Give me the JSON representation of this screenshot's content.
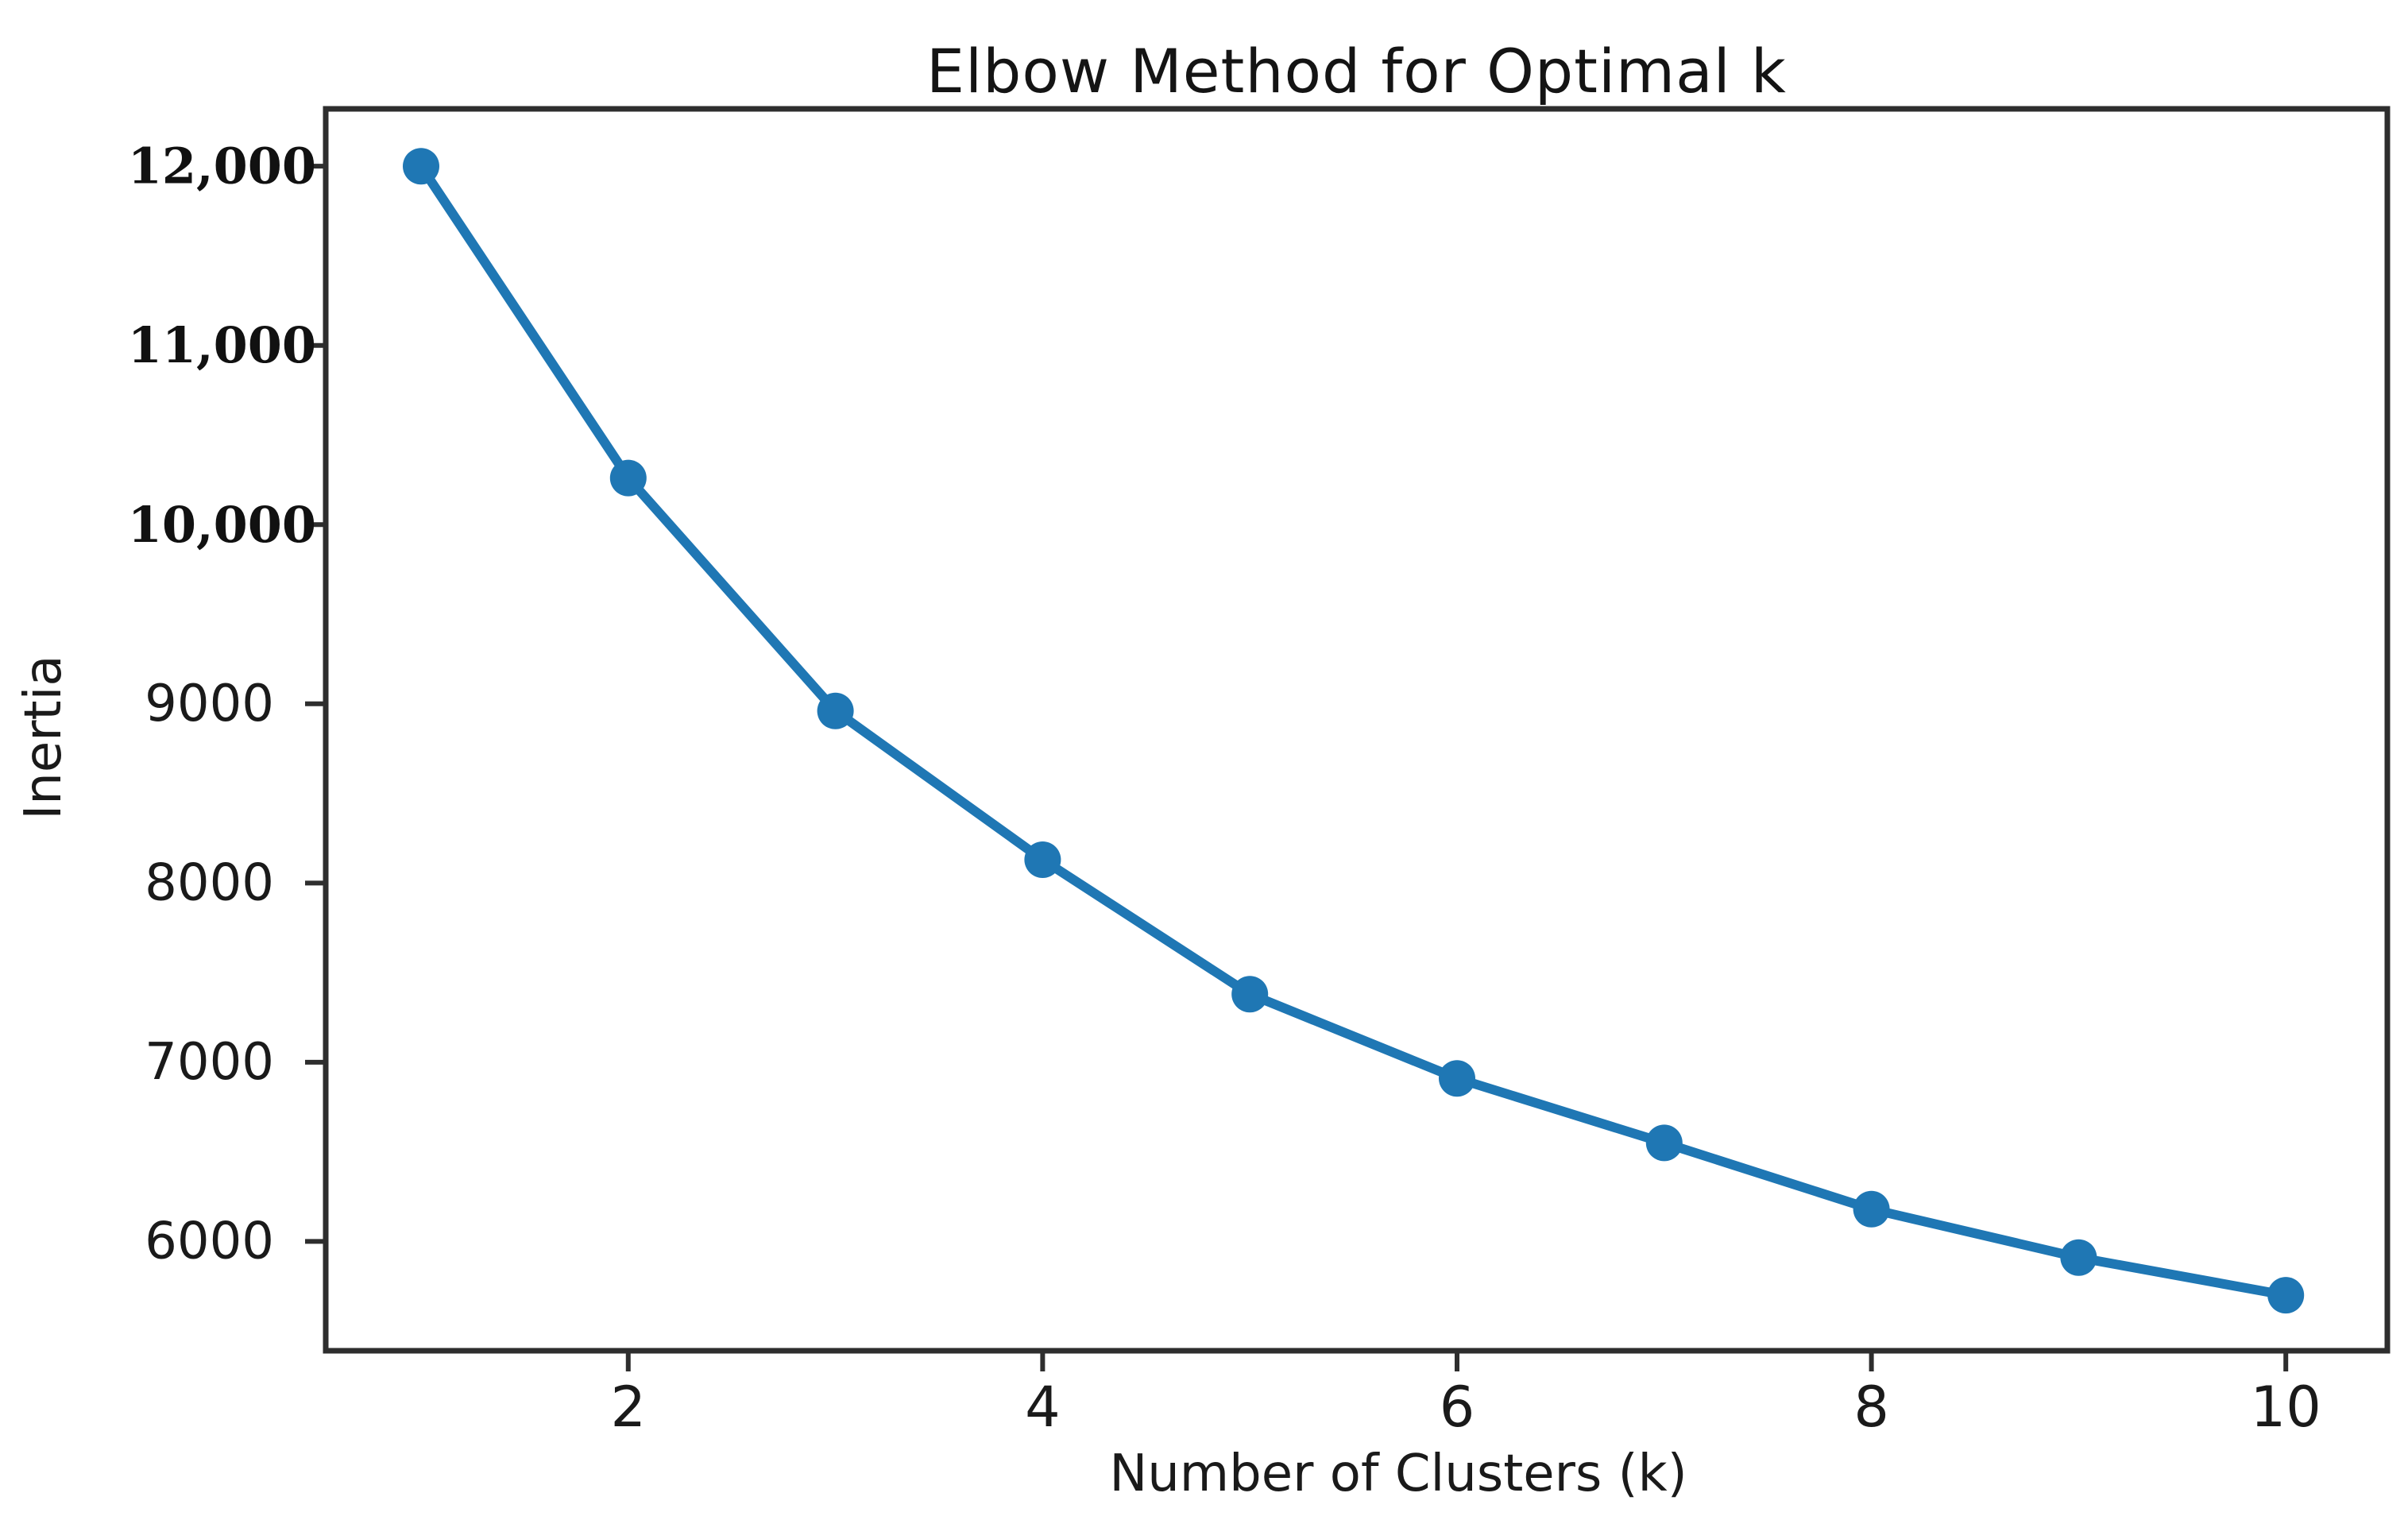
{
  "page": {
    "background_color": "#ffffff"
  },
  "chart_data": {
    "type": "line",
    "title": "Elbow Method for Optimal k",
    "xlabel": "Number of Clusters (k)",
    "ylabel": "Inertia",
    "series": [
      {
        "name": "Inertia",
        "x": [
          1,
          2,
          3,
          4,
          5,
          6,
          7,
          8,
          9,
          10
        ],
        "y": [
          12000,
          10260,
          8960,
          8130,
          7380,
          6910,
          6550,
          6180,
          5910,
          5700
        ]
      }
    ],
    "x_ticks": {
      "values": [
        2,
        4,
        6,
        8,
        10
      ],
      "labels": [
        "2",
        "4",
        "6",
        "8",
        "10"
      ]
    },
    "y_ticks": {
      "values": [
        12000,
        11000,
        10000,
        9000,
        8000,
        7000,
        6000
      ],
      "labels": [
        "12,000",
        "11,000",
        "10,000",
        "9000",
        "8000",
        "7000",
        "6000"
      ]
    },
    "xlim": [
      0.54,
      10.49
    ],
    "ylim": [
      5390,
      12320
    ],
    "grid": false,
    "legend": null,
    "line_color": "#1f77b4",
    "marker": "circle",
    "marker_color": "#1f77b4",
    "axis_color": "#2e2e2e",
    "text_color": "#1a1a1a"
  }
}
